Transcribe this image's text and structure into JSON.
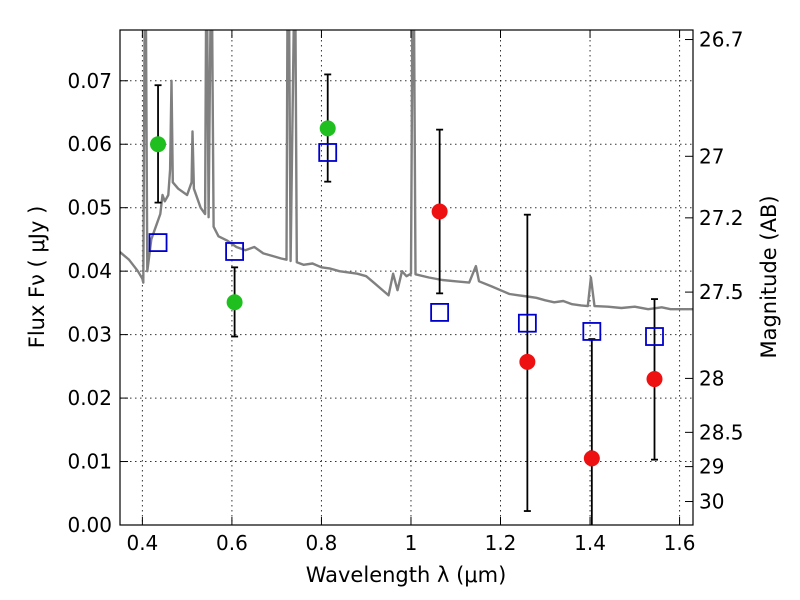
{
  "chart_data": {
    "type": "scatter",
    "xlabel": "Wavelength  λ (μm)",
    "ylabel": "Flux  Fν  ( μJy )",
    "ylabel_right": "Magnitude (AB)",
    "xlim": [
      0.35,
      1.63
    ],
    "ylim": [
      0.0,
      0.078
    ],
    "grid": true,
    "x_ticks": [
      0.4,
      0.6,
      0.8,
      1.0,
      1.2,
      1.4,
      1.6
    ],
    "x_tick_labels": [
      "0.4",
      "0.6",
      "0.8",
      "1",
      "1.2",
      "1.4",
      "1.6"
    ],
    "y_ticks": [
      0.0,
      0.01,
      0.02,
      0.03,
      0.04,
      0.05,
      0.06,
      0.07
    ],
    "y_tick_labels": [
      "0.00",
      "0.01",
      "0.02",
      "0.03",
      "0.04",
      "0.05",
      "0.06",
      "0.07"
    ],
    "right_ticks": [
      {
        "label": "26.7",
        "flux": 0.0765
      },
      {
        "label": "27",
        "flux": 0.0581
      },
      {
        "label": "27.2",
        "flux": 0.0484
      },
      {
        "label": "27.5",
        "flux": 0.0367
      },
      {
        "label": "28",
        "flux": 0.0231
      },
      {
        "label": "28.5",
        "flux": 0.0146
      },
      {
        "label": "29",
        "flux": 0.0092
      },
      {
        "label": "30",
        "flux": 0.0037
      }
    ],
    "colors": {
      "green": "#1fbf1f",
      "red": "#ee1111",
      "blue": "#0000cc",
      "model": "#808080",
      "errorbar": "#000000"
    },
    "series": [
      {
        "marker": "circle",
        "color": "green",
        "points": [
          {
            "x": 0.435,
            "y": 0.06,
            "err_low": 0.0508,
            "err_high": 0.0693
          },
          {
            "x": 0.606,
            "y": 0.0351,
            "err_low": 0.0297,
            "err_high": 0.0406
          },
          {
            "x": 0.814,
            "y": 0.0625,
            "err_low": 0.0541,
            "err_high": 0.071
          }
        ]
      },
      {
        "marker": "circle",
        "color": "red",
        "points": [
          {
            "x": 1.064,
            "y": 0.0494,
            "err_low": 0.0365,
            "err_high": 0.0623
          },
          {
            "x": 1.26,
            "y": 0.0257,
            "err_low": 0.0022,
            "err_high": 0.0489
          },
          {
            "x": 1.404,
            "y": 0.0105,
            "err_low": -0.001,
            "err_high": 0.0293
          },
          {
            "x": 1.544,
            "y": 0.023,
            "err_low": 0.0103,
            "err_high": 0.0356
          }
        ]
      },
      {
        "marker": "open-square",
        "color": "blue",
        "points": [
          {
            "x": 0.435,
            "y": 0.0445
          },
          {
            "x": 0.606,
            "y": 0.0431
          },
          {
            "x": 0.814,
            "y": 0.0587
          },
          {
            "x": 1.064,
            "y": 0.0335
          },
          {
            "x": 1.26,
            "y": 0.0318
          },
          {
            "x": 1.404,
            "y": 0.0305
          },
          {
            "x": 1.544,
            "y": 0.0297
          }
        ]
      }
    ],
    "model_spectrum": {
      "color": "model",
      "points": [
        [
          0.35,
          0.043
        ],
        [
          0.37,
          0.0418
        ],
        [
          0.39,
          0.04
        ],
        [
          0.4,
          0.0388
        ],
        [
          0.402,
          0.0382
        ],
        [
          0.405,
          0.078
        ],
        [
          0.408,
          0.078
        ],
        [
          0.411,
          0.04
        ],
        [
          0.42,
          0.045
        ],
        [
          0.43,
          0.047
        ],
        [
          0.44,
          0.049
        ],
        [
          0.445,
          0.052
        ],
        [
          0.45,
          0.051
        ],
        [
          0.458,
          0.052
        ],
        [
          0.462,
          0.056
        ],
        [
          0.465,
          0.07
        ],
        [
          0.468,
          0.054
        ],
        [
          0.48,
          0.053
        ],
        [
          0.5,
          0.052
        ],
        [
          0.51,
          0.054
        ],
        [
          0.512,
          0.062
        ],
        [
          0.515,
          0.053
        ],
        [
          0.53,
          0.05
        ],
        [
          0.54,
          0.049
        ],
        [
          0.542,
          0.078
        ],
        [
          0.545,
          0.078
        ],
        [
          0.548,
          0.0485
        ],
        [
          0.552,
          0.078
        ],
        [
          0.556,
          0.078
        ],
        [
          0.559,
          0.047
        ],
        [
          0.57,
          0.0455
        ],
        [
          0.59,
          0.0448
        ],
        [
          0.61,
          0.0438
        ],
        [
          0.63,
          0.0433
        ],
        [
          0.65,
          0.0438
        ],
        [
          0.67,
          0.0428
        ],
        [
          0.69,
          0.0424
        ],
        [
          0.71,
          0.042
        ],
        [
          0.722,
          0.0418
        ],
        [
          0.724,
          0.078
        ],
        [
          0.728,
          0.078
        ],
        [
          0.731,
          0.0416
        ],
        [
          0.738,
          0.078
        ],
        [
          0.742,
          0.078
        ],
        [
          0.745,
          0.0414
        ],
        [
          0.76,
          0.041
        ],
        [
          0.78,
          0.0412
        ],
        [
          0.8,
          0.0406
        ],
        [
          0.82,
          0.0404
        ],
        [
          0.84,
          0.04
        ],
        [
          0.86,
          0.0398
        ],
        [
          0.88,
          0.0396
        ],
        [
          0.9,
          0.0392
        ],
        [
          0.92,
          0.038
        ],
        [
          0.94,
          0.0368
        ],
        [
          0.95,
          0.0362
        ],
        [
          0.96,
          0.0396
        ],
        [
          0.97,
          0.037
        ],
        [
          0.98,
          0.04
        ],
        [
          0.99,
          0.0392
        ],
        [
          1.0,
          0.0396
        ],
        [
          1.003,
          0.078
        ],
        [
          1.007,
          0.078
        ],
        [
          1.01,
          0.0395
        ],
        [
          1.04,
          0.039
        ],
        [
          1.07,
          0.0386
        ],
        [
          1.1,
          0.0384
        ],
        [
          1.13,
          0.0382
        ],
        [
          1.145,
          0.0408
        ],
        [
          1.152,
          0.0384
        ],
        [
          1.18,
          0.0376
        ],
        [
          1.2,
          0.037
        ],
        [
          1.22,
          0.0364
        ],
        [
          1.24,
          0.0362
        ],
        [
          1.26,
          0.036
        ],
        [
          1.28,
          0.0358
        ],
        [
          1.3,
          0.0354
        ],
        [
          1.32,
          0.0351
        ],
        [
          1.34,
          0.0353
        ],
        [
          1.36,
          0.0348
        ],
        [
          1.38,
          0.0346
        ],
        [
          1.395,
          0.0345
        ],
        [
          1.402,
          0.039
        ],
        [
          1.41,
          0.0345
        ],
        [
          1.44,
          0.0344
        ],
        [
          1.47,
          0.0342
        ],
        [
          1.5,
          0.0344
        ],
        [
          1.53,
          0.034
        ],
        [
          1.56,
          0.0343
        ],
        [
          1.58,
          0.034
        ],
        [
          1.6,
          0.034
        ],
        [
          1.63,
          0.034
        ]
      ]
    }
  }
}
